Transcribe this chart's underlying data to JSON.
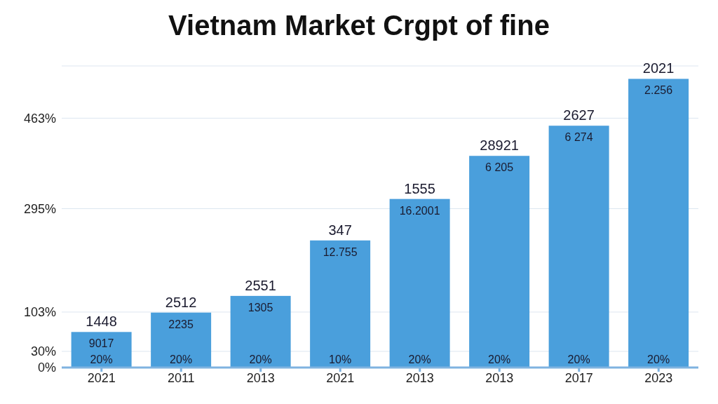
{
  "chart_data": {
    "type": "bar",
    "title": "Vietnam Market Crgpt of fine",
    "categories": [
      "2021",
      "2011",
      "2013",
      "2021",
      "2013",
      "2013",
      "2017",
      "2023"
    ],
    "values": [
      66,
      102,
      133,
      236,
      313,
      393,
      449,
      536
    ],
    "color": "#4a9fdc",
    "annotations": [
      "1448",
      "2512",
      "2551",
      "347",
      "1555",
      "28921",
      "2627",
      "2021",
      "9017",
      "2235",
      "1305",
      "12.755",
      "16.2001",
      "6 205",
      "6 274",
      "2.256",
      "20%",
      "20%",
      "20%",
      "10%",
      "20%",
      "20%",
      "20%",
      "20%"
    ],
    "ylim": [
      0,
      560
    ],
    "yticks": [
      {
        "value": 0,
        "label": "0%"
      },
      {
        "value": 30,
        "label": "30%"
      },
      {
        "value": 103,
        "label": "103%"
      },
      {
        "value": 295,
        "label": "295%"
      },
      {
        "value": 463,
        "label": "463%"
      }
    ],
    "grid": "y"
  }
}
